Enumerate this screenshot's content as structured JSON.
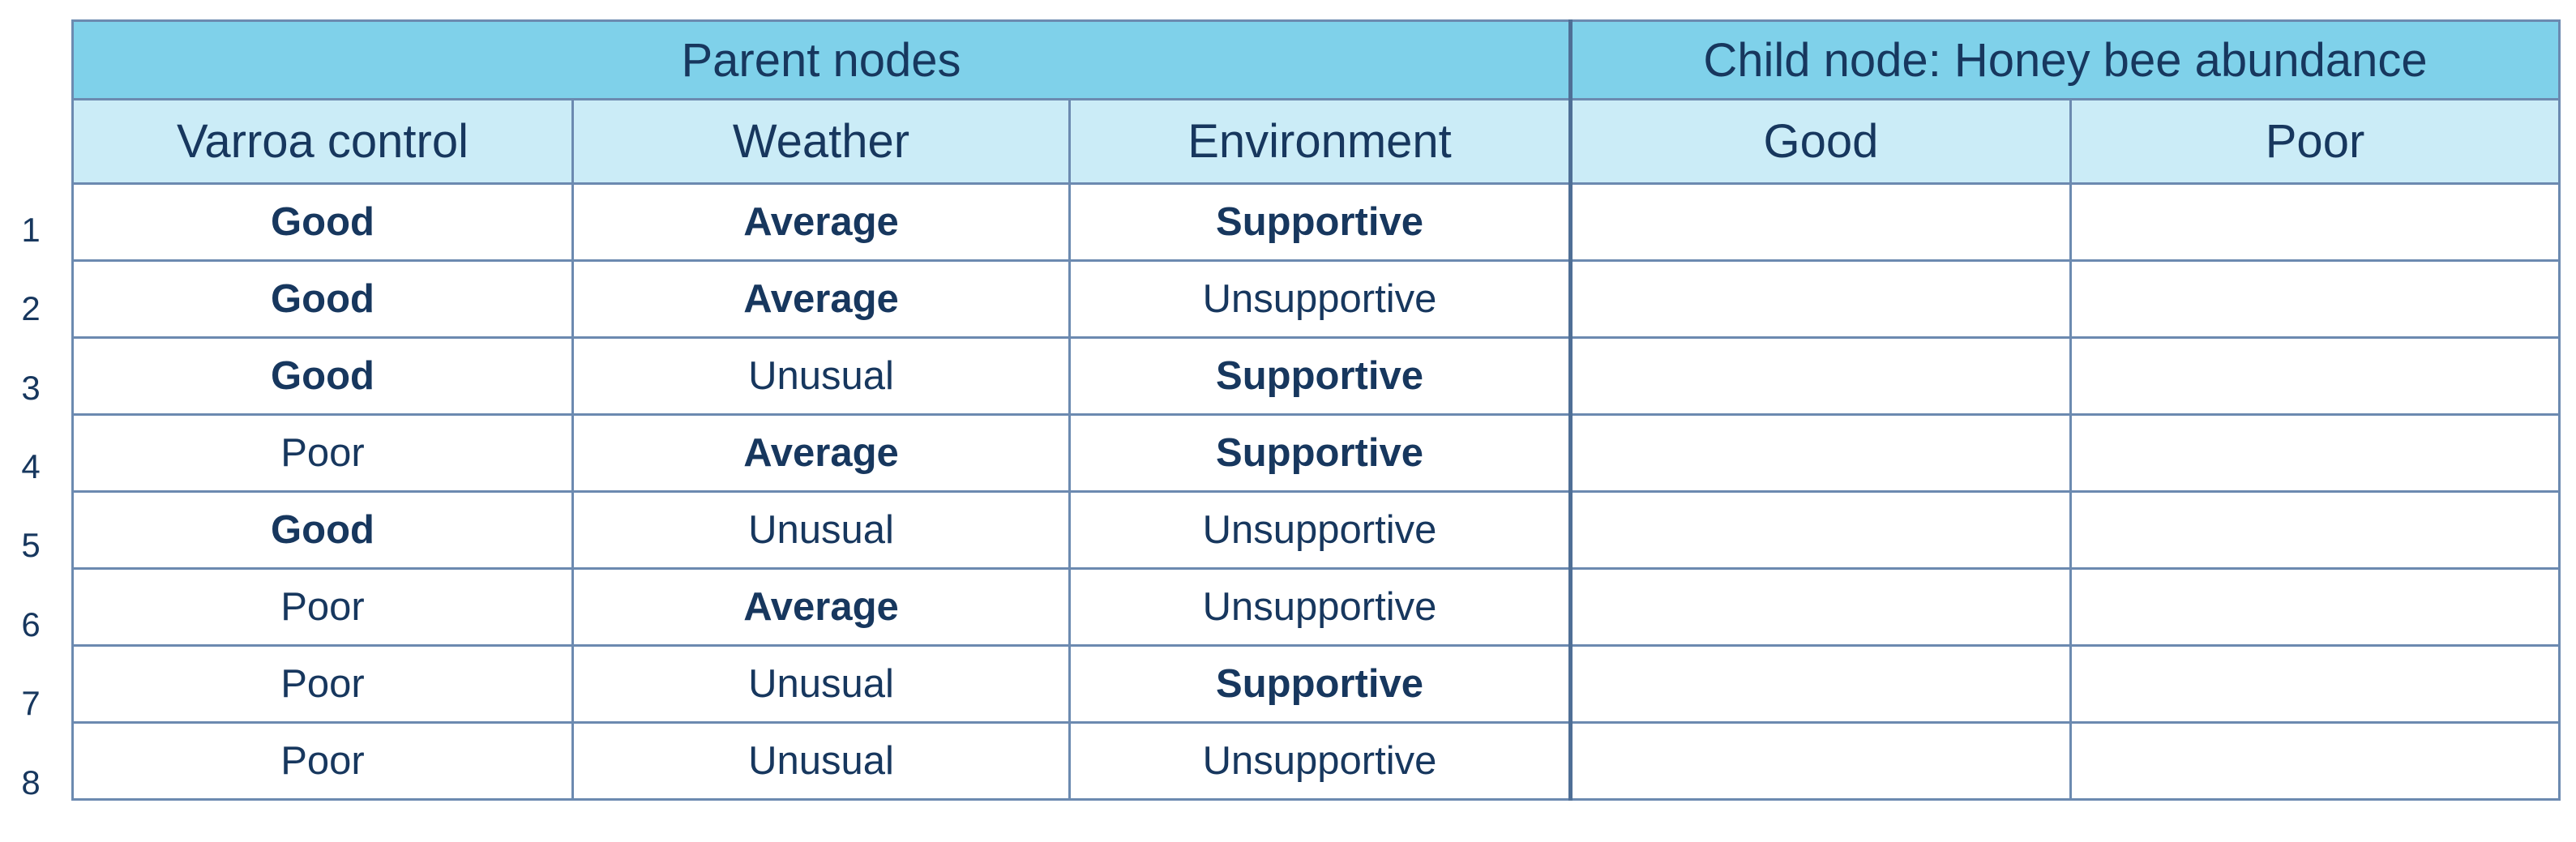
{
  "table": {
    "group_headers": {
      "parent": "Parent nodes",
      "child": "Child node: Honey bee abundance"
    },
    "columns": [
      "Varroa control",
      "Weather",
      "Environment",
      "Good",
      "Poor"
    ],
    "row_numbers": [
      "1",
      "2",
      "3",
      "4",
      "5",
      "6",
      "7",
      "8"
    ],
    "rows": [
      {
        "varroa": "Good",
        "weather": "Average",
        "environment": "Supportive",
        "good": "",
        "poor": ""
      },
      {
        "varroa": "Good",
        "weather": "Average",
        "environment": "Unsupportive",
        "good": "",
        "poor": ""
      },
      {
        "varroa": "Good",
        "weather": "Unusual",
        "environment": "Supportive",
        "good": "",
        "poor": ""
      },
      {
        "varroa": "Poor",
        "weather": "Average",
        "environment": "Supportive",
        "good": "",
        "poor": ""
      },
      {
        "varroa": "Good",
        "weather": "Unusual",
        "environment": "Unsupportive",
        "good": "",
        "poor": ""
      },
      {
        "varroa": "Poor",
        "weather": "Average",
        "environment": "Unsupportive",
        "good": "",
        "poor": ""
      },
      {
        "varroa": "Poor",
        "weather": "Unusual",
        "environment": "Supportive",
        "good": "",
        "poor": ""
      },
      {
        "varroa": "Poor",
        "weather": "Unusual",
        "environment": "Unsupportive",
        "good": "",
        "poor": ""
      }
    ],
    "bold_values": [
      "Good",
      "Average",
      "Supportive"
    ],
    "colors": {
      "group_header_bg": "#7fd1ea",
      "column_header_bg": "#cbecf7",
      "text": "#17375e",
      "border": "#6c8ab0"
    }
  }
}
